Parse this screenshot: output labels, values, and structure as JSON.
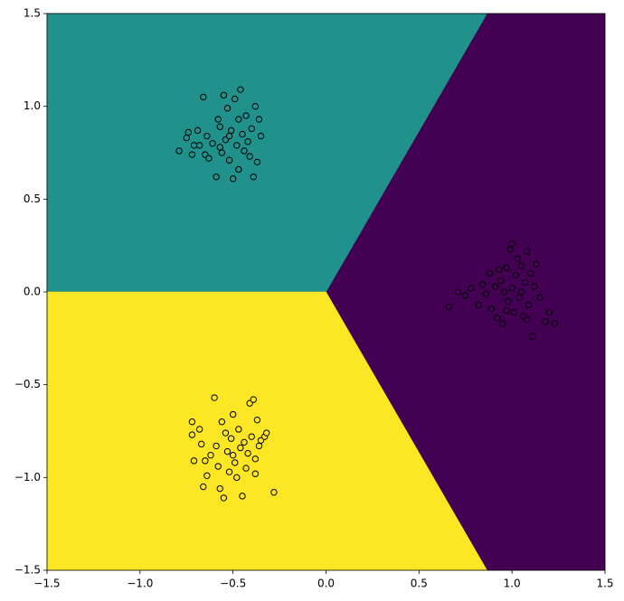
{
  "chart_data": {
    "type": "scatter",
    "xlim": [
      -1.5,
      1.5
    ],
    "ylim": [
      -1.5,
      1.5
    ],
    "xticks": [
      {
        "value": -1.5,
        "label": "−1.5"
      },
      {
        "value": -1.0,
        "label": "−1.0"
      },
      {
        "value": -0.5,
        "label": "−0.5"
      },
      {
        "value": 0,
        "label": "0.0"
      },
      0.5,
      {
        "value": 1.0,
        "label": "1.0"
      },
      1.5
    ],
    "yticks": [
      {
        "value": -1.5,
        "label": "−1.5"
      },
      {
        "value": -1.0,
        "label": "−1.0"
      },
      {
        "value": -0.5,
        "label": "−0.5"
      },
      {
        "value": 0,
        "label": "0.0"
      },
      0.5,
      {
        "value": 1.0,
        "label": "1.0"
      },
      1.5
    ],
    "regions": [
      {
        "color": "#440154",
        "x": [
          0,
          0.866,
          1.5,
          1.5,
          0.866
        ],
        "y": [
          0,
          1.5,
          1.5,
          -1.5,
          -1.5
        ]
      },
      {
        "color": "#21918c",
        "x": [
          -1.5,
          0,
          0.866,
          -1.5
        ],
        "y": [
          0,
          0,
          1.5,
          1.5
        ]
      },
      {
        "color": "#fde725",
        "x": [
          -1.5,
          0,
          0.866,
          -1.5
        ],
        "y": [
          0,
          0,
          -1.5,
          -1.5
        ]
      }
    ],
    "series": [
      {
        "color": "#21918c",
        "x": [
          -0.79,
          -0.75,
          -0.74,
          -0.72,
          -0.71,
          -0.69,
          -0.68,
          -0.66,
          -0.65,
          -0.64,
          -0.63,
          -0.61,
          -0.59,
          -0.58,
          -0.57,
          -0.56,
          -0.55,
          -0.54,
          -0.53,
          -0.52,
          -0.51,
          -0.5,
          -0.49,
          -0.48,
          -0.47,
          -0.46,
          -0.45,
          -0.44,
          -0.43,
          -0.42,
          -0.41,
          -0.4,
          -0.39,
          -0.38,
          -0.37,
          -0.36,
          -0.35,
          -0.52,
          -0.47,
          -0.57
        ],
        "values": [
          0.76,
          0.83,
          0.86,
          0.74,
          0.79,
          0.87,
          0.79,
          1.05,
          0.74,
          0.84,
          0.72,
          0.8,
          0.62,
          0.93,
          0.89,
          0.75,
          1.06,
          0.82,
          0.99,
          0.71,
          0.87,
          0.61,
          1.04,
          0.79,
          0.93,
          1.09,
          0.85,
          0.76,
          0.95,
          0.81,
          0.73,
          0.88,
          0.62,
          1.0,
          0.7,
          0.93,
          0.84,
          0.84,
          0.66,
          0.78
        ]
      },
      {
        "color": "#440154",
        "x": [
          0.66,
          0.71,
          0.75,
          0.78,
          0.82,
          0.84,
          0.86,
          0.88,
          0.89,
          0.91,
          0.92,
          0.94,
          0.95,
          0.96,
          0.97,
          0.98,
          0.99,
          1.0,
          1.01,
          1.02,
          1.03,
          1.04,
          1.05,
          1.06,
          1.07,
          1.08,
          1.09,
          1.1,
          1.11,
          1.12,
          1.13,
          1.15,
          1.18,
          1.2,
          1.23,
          1.0,
          0.97,
          1.05,
          0.93,
          1.08
        ],
        "values": [
          -0.08,
          0.0,
          -0.02,
          0.02,
          -0.07,
          0.04,
          -0.01,
          0.1,
          -0.09,
          0.03,
          -0.14,
          0.06,
          -0.17,
          0.0,
          0.13,
          -0.05,
          0.23,
          0.02,
          -0.11,
          0.09,
          0.18,
          -0.03,
          0.14,
          -0.13,
          0.05,
          0.22,
          -0.07,
          0.1,
          -0.24,
          0.03,
          0.15,
          -0.03,
          -0.16,
          -0.11,
          -0.17,
          0.26,
          -0.1,
          0.0,
          0.12,
          -0.15
        ]
      },
      {
        "color": "#fde725",
        "x": [
          -0.72,
          -0.72,
          -0.71,
          -0.68,
          -0.67,
          -0.66,
          -0.65,
          -0.64,
          -0.62,
          -0.6,
          -0.59,
          -0.58,
          -0.57,
          -0.56,
          -0.55,
          -0.54,
          -0.53,
          -0.52,
          -0.51,
          -0.5,
          -0.49,
          -0.48,
          -0.47,
          -0.46,
          -0.45,
          -0.44,
          -0.43,
          -0.42,
          -0.41,
          -0.4,
          -0.39,
          -0.38,
          -0.37,
          -0.36,
          -0.35,
          -0.33,
          -0.32,
          -0.28,
          -0.38,
          -0.5
        ],
        "values": [
          -0.7,
          -0.77,
          -0.91,
          -0.74,
          -0.82,
          -1.05,
          -0.91,
          -0.99,
          -0.88,
          -0.57,
          -0.83,
          -0.94,
          -1.06,
          -0.7,
          -1.11,
          -0.76,
          -0.86,
          -0.97,
          -0.79,
          -0.66,
          -0.92,
          -1.0,
          -0.74,
          -0.84,
          -1.1,
          -0.81,
          -0.95,
          -0.87,
          -0.6,
          -0.78,
          -0.58,
          -0.9,
          -0.69,
          -0.83,
          -0.8,
          -0.78,
          -0.76,
          -1.08,
          -0.98,
          -0.88
        ]
      }
    ]
  }
}
